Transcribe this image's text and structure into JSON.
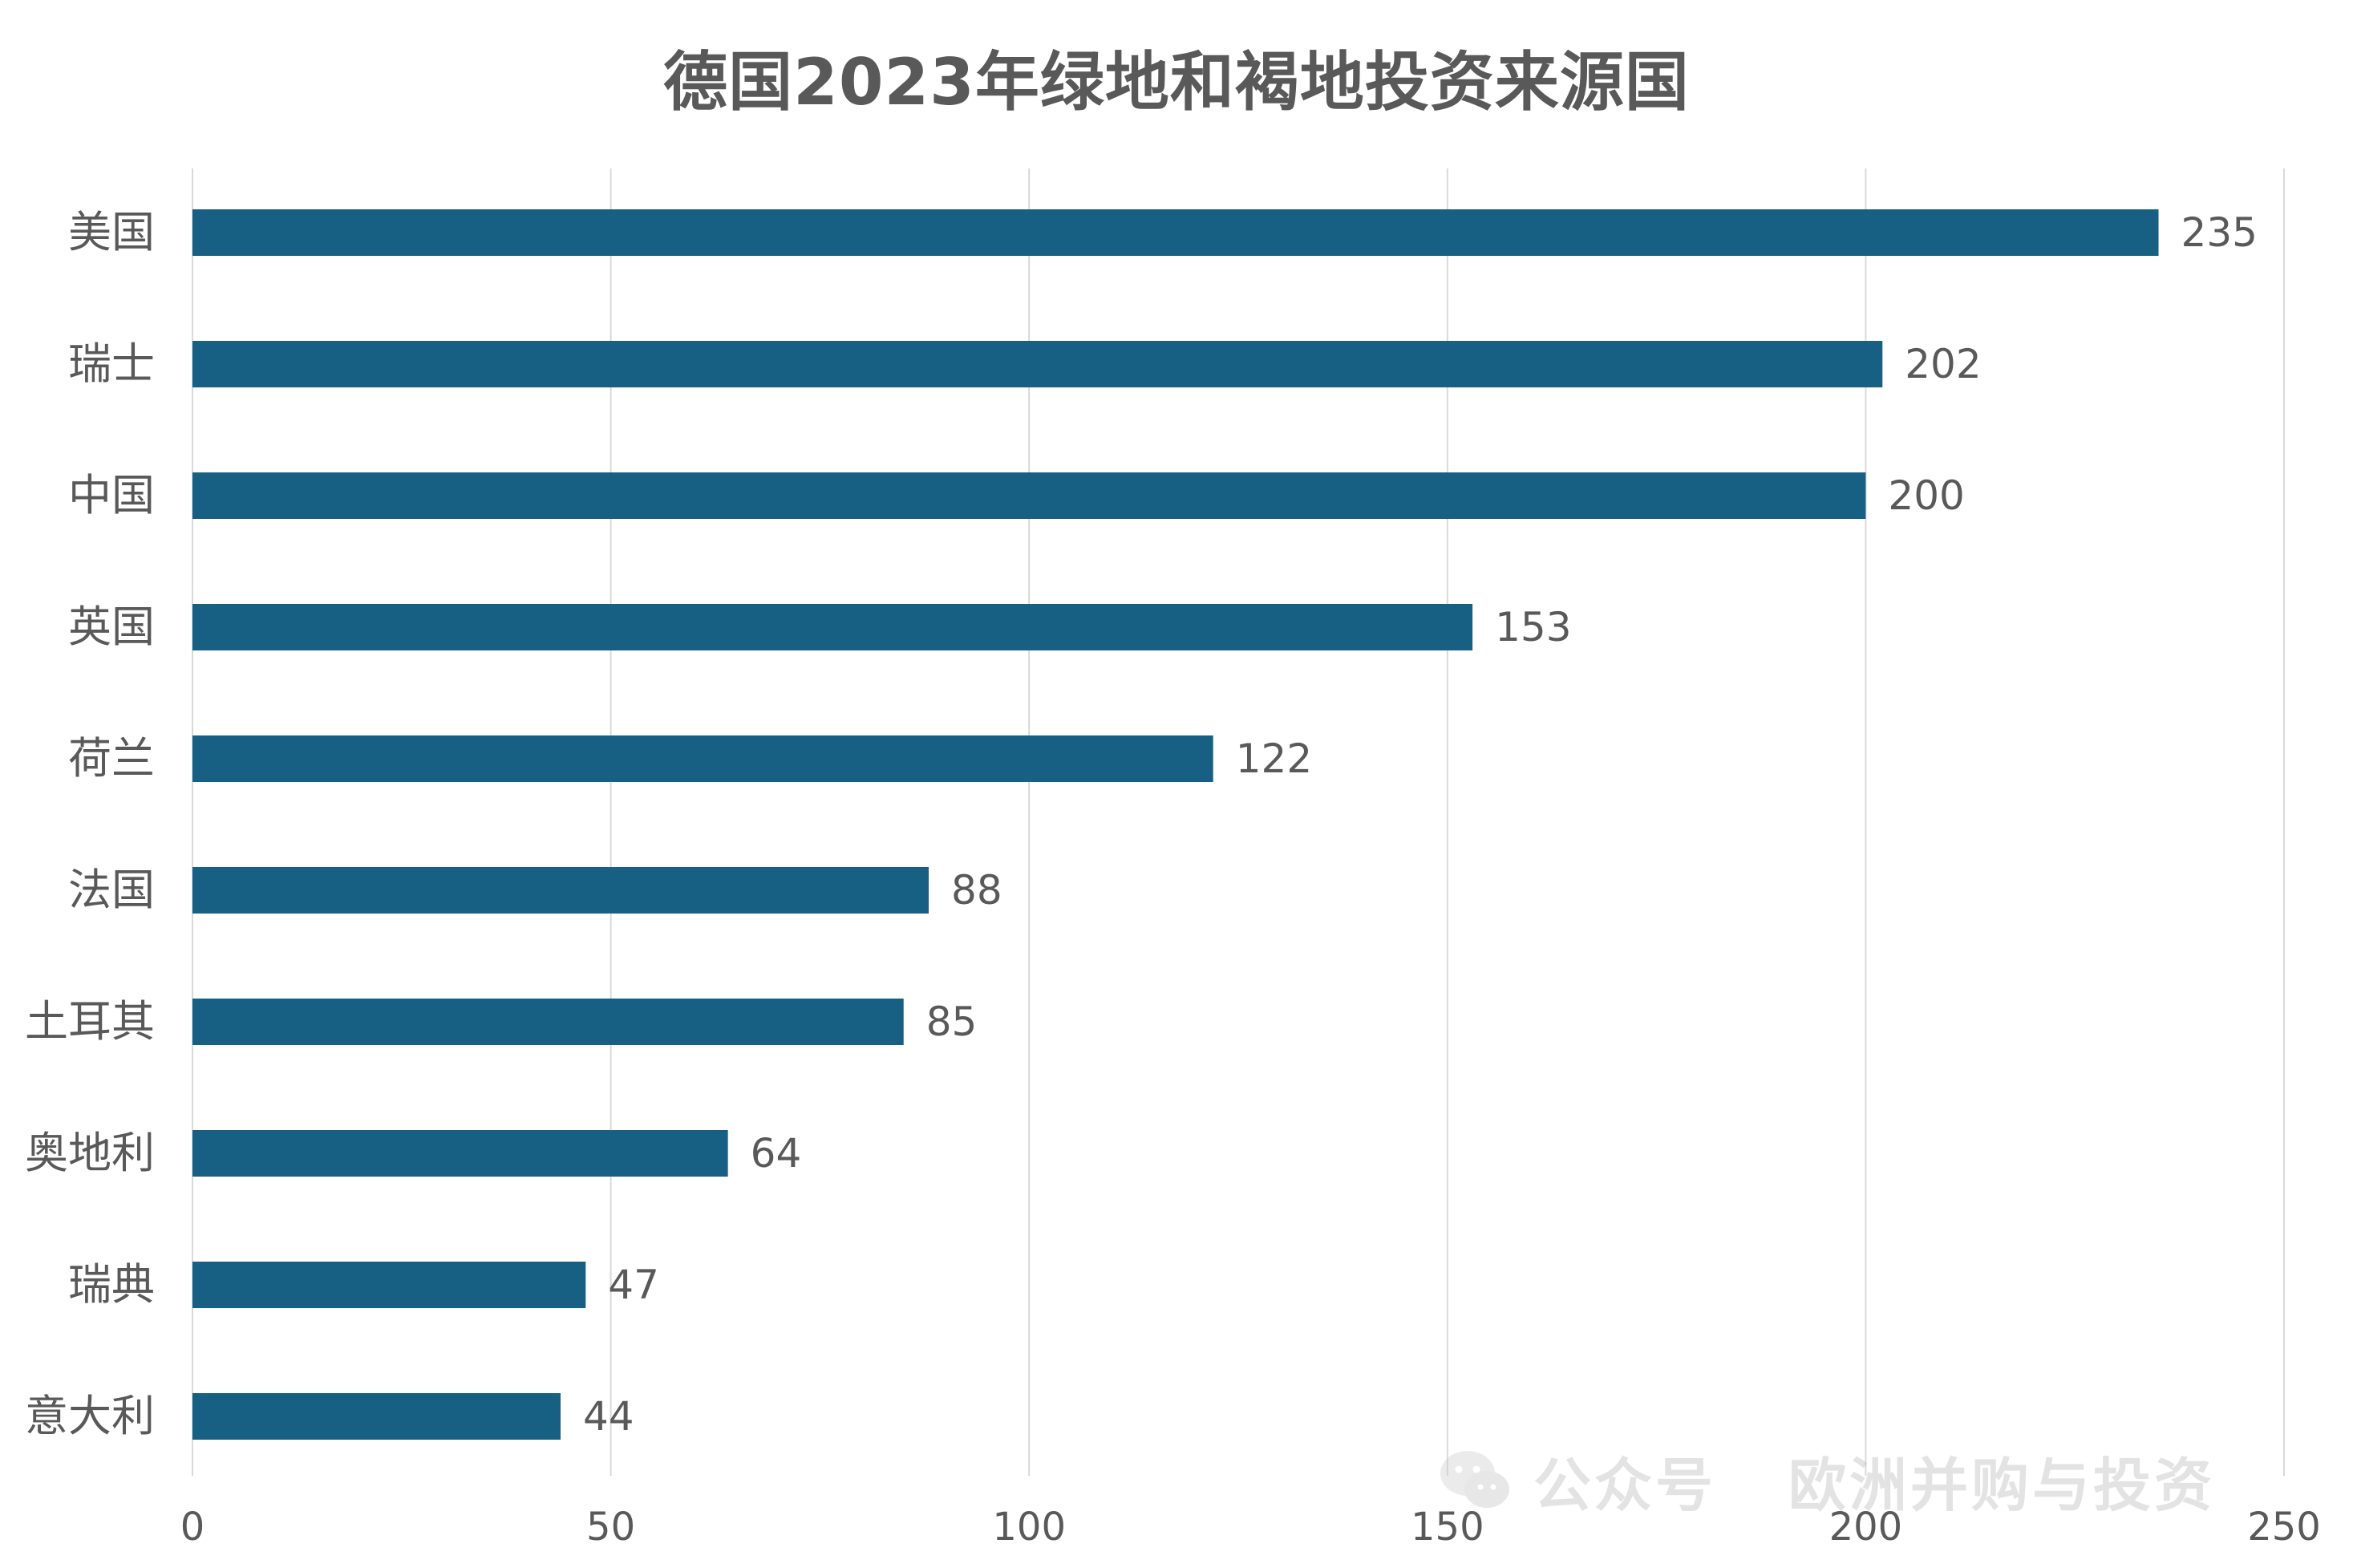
{
  "chart_data": {
    "type": "bar",
    "orientation": "horizontal",
    "title": "德国2023年绿地和褐地投资来源国",
    "categories": [
      "美国",
      "瑞士",
      "中国",
      "英国",
      "荷兰",
      "法国",
      "土耳其",
      "奥地利",
      "瑞典",
      "意大利"
    ],
    "values": [
      235,
      202,
      200,
      153,
      122,
      88,
      85,
      64,
      47,
      44
    ],
    "xlim": [
      0,
      250
    ],
    "xticks": [
      0,
      50,
      100,
      150,
      200,
      250
    ],
    "xlabel": "",
    "ylabel": "",
    "grid": "vertical",
    "legend": "none",
    "bar_color": "#176083",
    "data_labels": true
  },
  "watermark": {
    "icon": "wechat-icon",
    "prefix": "公众号",
    "account": "欧洲并购与投资"
  },
  "colors": {
    "bar": "#176083",
    "grid": "#d9d9d9",
    "text": "#595959"
  }
}
